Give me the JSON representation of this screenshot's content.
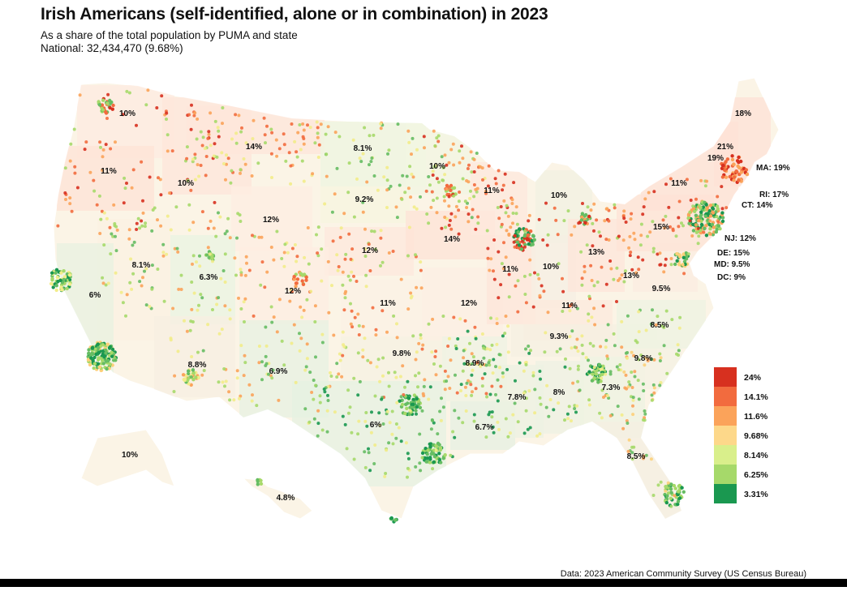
{
  "title": "Irish Americans (self-identified, alone or in combination) in 2023",
  "subtitle_line1": "As a share of the total population by PUMA and state",
  "subtitle_line2": "National: 32,434,470 (9.68%)",
  "source": "Data: 2023 American Community Survey (US Census Bureau)",
  "colors": {
    "high": "#d7301f",
    "mid_high": "#f26b3e",
    "mid": "#fba35a",
    "mid_low": "#fdd07a",
    "neutral": "#f2ec8a",
    "low": "#a6d96a",
    "lower": "#66bd63",
    "lowest": "#1a9850"
  },
  "legend": [
    {
      "label": "24%",
      "color": "#d7301f"
    },
    {
      "label": "14.1%",
      "color": "#f26b3e"
    },
    {
      "label": "11.6%",
      "color": "#fba35a"
    },
    {
      "label": "9.68%",
      "color": "#fdd88a"
    },
    {
      "label": "8.14%",
      "color": "#d9ef8b"
    },
    {
      "label": "6.25%",
      "color": "#a6d96a"
    },
    {
      "label": "3.31%",
      "color": "#1a9850"
    }
  ],
  "states": [
    {
      "id": "WA",
      "label": "10%"
    },
    {
      "id": "OR",
      "label": "11%"
    },
    {
      "id": "ID",
      "label": "10%"
    },
    {
      "id": "MT",
      "label": "14%"
    },
    {
      "id": "ND",
      "label": "8.1%"
    },
    {
      "id": "SD",
      "label": "9.2%"
    },
    {
      "id": "WY",
      "label": "12%"
    },
    {
      "id": "NE",
      "label": "12%"
    },
    {
      "id": "NV",
      "label": "8.1%"
    },
    {
      "id": "UT",
      "label": "6.3%"
    },
    {
      "id": "CO",
      "label": "12%"
    },
    {
      "id": "CA",
      "label": "6%"
    },
    {
      "id": "AZ",
      "label": "8.8%"
    },
    {
      "id": "NM",
      "label": "6.9%"
    },
    {
      "id": "KS",
      "label": "11%"
    },
    {
      "id": "OK",
      "label": "9.8%"
    },
    {
      "id": "TX",
      "label": "6%"
    },
    {
      "id": "MN",
      "label": "10%"
    },
    {
      "id": "IA",
      "label": "14%"
    },
    {
      "id": "MO",
      "label": "12%"
    },
    {
      "id": "AR",
      "label": "8.9%"
    },
    {
      "id": "LA",
      "label": "6.7%"
    },
    {
      "id": "WI",
      "label": "11%"
    },
    {
      "id": "IL",
      "label": "11%"
    },
    {
      "id": "MI",
      "label": "10%"
    },
    {
      "id": "IN",
      "label": "10%"
    },
    {
      "id": "OH",
      "label": "13%"
    },
    {
      "id": "KY",
      "label": "11%"
    },
    {
      "id": "TN",
      "label": "9.3%"
    },
    {
      "id": "MS",
      "label": "7.8%"
    },
    {
      "id": "AL",
      "label": "8%"
    },
    {
      "id": "GA",
      "label": "7.3%"
    },
    {
      "id": "FL",
      "label": "8.5%"
    },
    {
      "id": "SC",
      "label": "9.8%"
    },
    {
      "id": "NC",
      "label": "8.5%"
    },
    {
      "id": "VA",
      "label": "9.5%"
    },
    {
      "id": "WV",
      "label": "13%"
    },
    {
      "id": "PA",
      "label": "15%"
    },
    {
      "id": "NY",
      "label": "11%"
    },
    {
      "id": "VT",
      "label": "19%"
    },
    {
      "id": "NH",
      "label": "21%"
    },
    {
      "id": "ME",
      "label": "18%"
    },
    {
      "id": "AK",
      "label": "10%"
    },
    {
      "id": "HI",
      "label": "4.8%"
    },
    {
      "id": "MA",
      "label": "MA: 19%"
    },
    {
      "id": "RI",
      "label": "RI: 17%"
    },
    {
      "id": "CT",
      "label": "CT: 14%"
    },
    {
      "id": "NJ",
      "label": "NJ: 12%"
    },
    {
      "id": "DE",
      "label": "DE: 15%"
    },
    {
      "id": "MD",
      "label": "MD: 9.5%"
    },
    {
      "id": "DC",
      "label": "DC: 9%"
    }
  ]
}
